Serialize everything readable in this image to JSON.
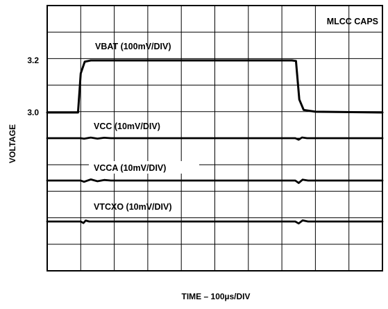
{
  "chart_data": {
    "type": "line",
    "title": "",
    "xlabel": "TIME – 100µs/DIV",
    "ylabel": "VOLTAGE",
    "corner_label": "MLCC CAPS",
    "grid": true,
    "grid_divisions": {
      "x": 10,
      "y": 10
    },
    "y_ticks": [
      "3.2",
      "3.0"
    ],
    "series": [
      {
        "name": "VBAT (100mV/DIV)",
        "color": "#000000",
        "points": [
          [
            0,
            3.0
          ],
          [
            0.92,
            3.0
          ],
          [
            1.0,
            3.15
          ],
          [
            1.12,
            3.195
          ],
          [
            1.3,
            3.2
          ],
          [
            7.3,
            3.2
          ],
          [
            7.42,
            3.198
          ],
          [
            7.52,
            3.05
          ],
          [
            7.65,
            3.01
          ],
          [
            8.0,
            3.003
          ],
          [
            10,
            3.0
          ]
        ]
      },
      {
        "name": "VCC (10mV/DIV)",
        "color": "#000000",
        "points": [
          [
            0,
            0
          ],
          [
            1.0,
            0
          ],
          [
            1.1,
            -0.7
          ],
          [
            1.3,
            0.9
          ],
          [
            1.5,
            -0.6
          ],
          [
            1.7,
            0.6
          ],
          [
            1.9,
            0
          ],
          [
            7.4,
            0
          ],
          [
            7.5,
            -2.2
          ],
          [
            7.6,
            1.0
          ],
          [
            7.75,
            0
          ],
          [
            10,
            0
          ]
        ]
      },
      {
        "name": "VCCA (10mV/DIV)",
        "color": "#000000",
        "points": [
          [
            0,
            0
          ],
          [
            1.0,
            0
          ],
          [
            1.1,
            -1.8
          ],
          [
            1.3,
            1.6
          ],
          [
            1.5,
            -1.0
          ],
          [
            1.7,
            0.8
          ],
          [
            1.9,
            0
          ],
          [
            7.4,
            0
          ],
          [
            7.5,
            -3.5
          ],
          [
            7.62,
            1.3
          ],
          [
            7.78,
            0
          ],
          [
            10,
            0
          ]
        ]
      },
      {
        "name": "VTCXO (10mV/DIV)",
        "color": "#000000",
        "points": [
          [
            0,
            0
          ],
          [
            1.0,
            0
          ],
          [
            1.08,
            -2.2
          ],
          [
            1.15,
            1.4
          ],
          [
            1.25,
            0
          ],
          [
            7.4,
            0
          ],
          [
            7.5,
            -2.8
          ],
          [
            7.62,
            1.6
          ],
          [
            7.78,
            0
          ],
          [
            10,
            0
          ]
        ]
      }
    ]
  }
}
